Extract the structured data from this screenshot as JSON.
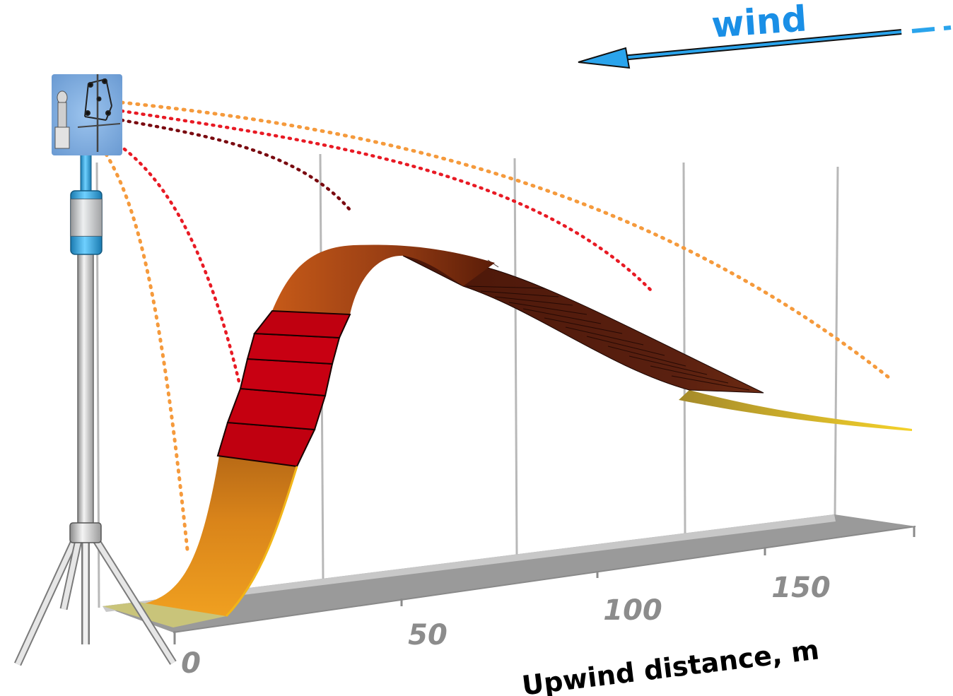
{
  "diagram": {
    "wind_label": "wind",
    "axis_title": "Upwind distance, m",
    "tick_labels": [
      "0",
      "50",
      "100",
      "150"
    ],
    "colors": {
      "wind": "#2aa4ec",
      "wind_text": "#1a8fe6",
      "ground": "#9a9a9a",
      "ground_top": "#c8c8c8",
      "tick_label": "#8c8c8c",
      "footprint_low": "#e09a1c",
      "footprint_edge": "#f2c318",
      "footprint_tail": "#b8a12a",
      "footprint_peak": "#c0000f",
      "footprint_brown": "#a64a1a",
      "footprint_dark": "#3a1206",
      "trace_orange": "#f59a3c",
      "trace_red": "#e81a24",
      "trace_darkred": "#7a0a10",
      "pole": "#d8d8d8",
      "pole_blue": "#3ab4ec"
    },
    "icons": [
      "eddy-covariance-tower-icon",
      "sonic-anemometer-icon",
      "gas-analyzer-icon"
    ]
  }
}
